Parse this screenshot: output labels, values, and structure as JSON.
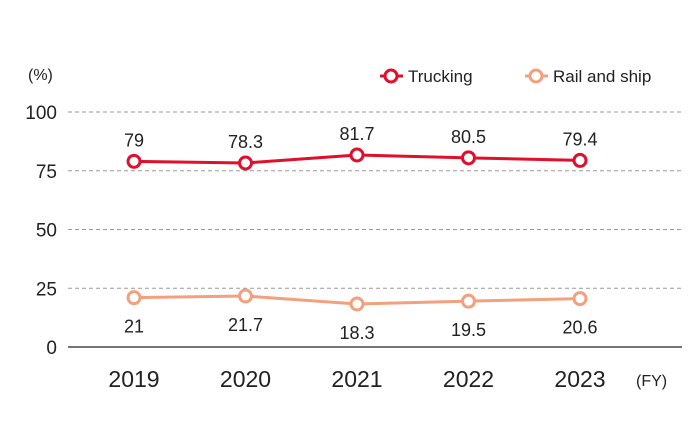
{
  "chart_data": {
    "type": "line",
    "ylabel": "(%)",
    "xlabel": "(FY)",
    "categories": [
      "2019",
      "2020",
      "2021",
      "2022",
      "2023"
    ],
    "ylim": [
      0,
      100
    ],
    "yticks": [
      0,
      25,
      50,
      75,
      100
    ],
    "grid": true,
    "legend_position": "top-right",
    "series": [
      {
        "name": "Trucking",
        "color": "#e0102c",
        "values": [
          79,
          78.3,
          81.7,
          80.5,
          79.4
        ],
        "labels": [
          "79",
          "78.3",
          "81.7",
          "80.5",
          "79.4"
        ],
        "label_position": "above"
      },
      {
        "name": "Rail and ship",
        "color": "#f2a07e",
        "values": [
          21,
          21.7,
          18.3,
          19.5,
          20.6
        ],
        "labels": [
          "21",
          "21.7",
          "18.3",
          "19.5",
          "20.6"
        ],
        "label_position": "below"
      }
    ]
  }
}
